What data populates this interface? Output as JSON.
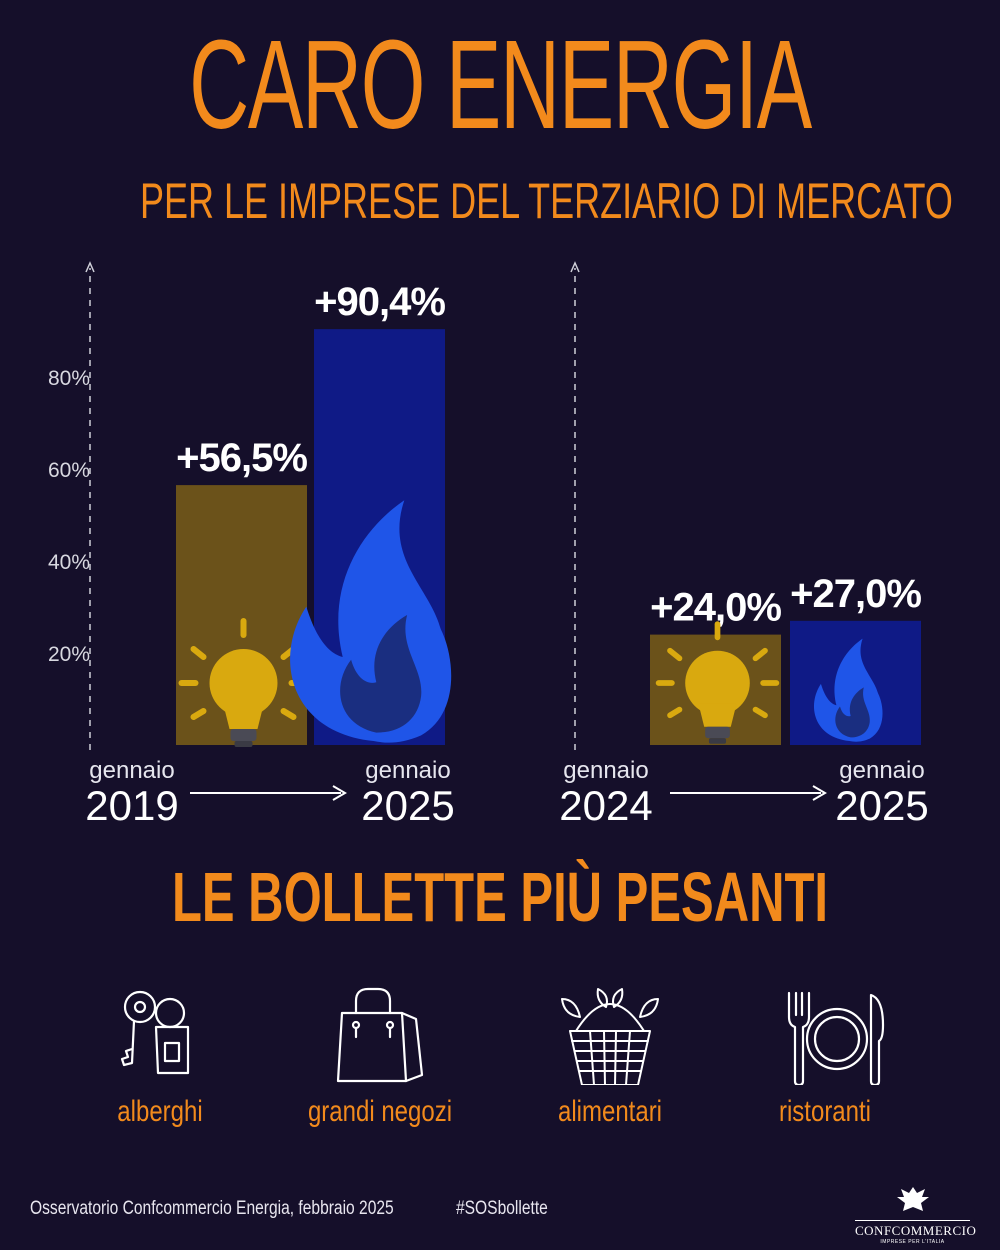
{
  "header": {
    "title": "CARO ENERGIA",
    "subtitle": "PER LE IMPRESE DEL TERZIARIO DI MERCATO"
  },
  "chart_data": [
    {
      "type": "bar",
      "categories": [
        "energia elettrica",
        "gas"
      ],
      "values": [
        56.5,
        90.4
      ],
      "value_labels": [
        "+56,5%",
        "+90,4%"
      ],
      "y_ticks": [
        "20%",
        "40%",
        "60%",
        "80%"
      ],
      "ylim": [
        0,
        100
      ],
      "period": {
        "from_month": "gennaio",
        "from_year": "2019",
        "to_month": "gennaio",
        "to_year": "2025"
      },
      "colors": [
        "#6b521a",
        "#0f1a86"
      ],
      "icons": [
        "lightbulb-icon",
        "flame-icon"
      ]
    },
    {
      "type": "bar",
      "categories": [
        "energia elettrica",
        "gas"
      ],
      "values": [
        24.0,
        27.0
      ],
      "value_labels": [
        "+24,0%",
        "+27,0%"
      ],
      "ylim": [
        0,
        100
      ],
      "period": {
        "from_month": "gennaio",
        "from_year": "2024",
        "to_month": "gennaio",
        "to_year": "2025"
      },
      "colors": [
        "#6b521a",
        "#0f1a86"
      ],
      "icons": [
        "lightbulb-icon",
        "flame-icon"
      ]
    }
  ],
  "section": {
    "title": "LE BOLLETTE PIÙ PESANTI"
  },
  "sectors": [
    {
      "label": "alberghi",
      "icon": "hotel-key-icon"
    },
    {
      "label": "grandi negozi",
      "icon": "shopping-bag-icon"
    },
    {
      "label": "alimentari",
      "icon": "grocery-basket-icon"
    },
    {
      "label": "ristoranti",
      "icon": "restaurant-plate-icon"
    }
  ],
  "footer": {
    "source": "Osservatorio Confcommercio Energia, febbraio 2025",
    "hashtag": "#SOSbollette",
    "logo_name": "CONFCOMMERCIO",
    "logo_tagline": "IMPRESE PER L'ITALIA"
  },
  "colors": {
    "background": "#150f2a",
    "accent": "#f28a1c",
    "electricity_bar": "#6b521a",
    "gas_bar": "#0f1a86",
    "bulb": "#d9a90f",
    "flame": "#1f55e8"
  }
}
